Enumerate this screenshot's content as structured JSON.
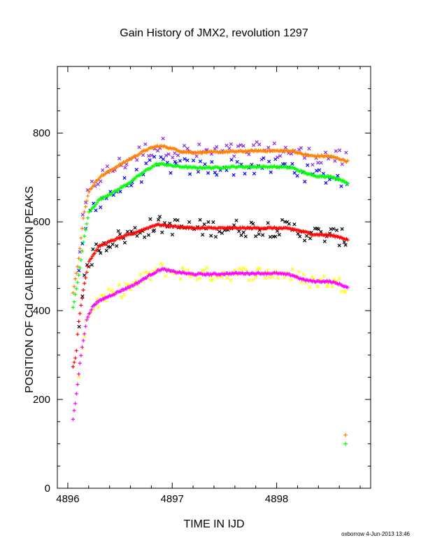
{
  "chart_data": {
    "type": "scatter",
    "title": "Gain History of JMX2, revolution 1297",
    "xlabel": "TIME IN IJD",
    "ylabel": "POSITION OF Cd CALIBRATION PEAKS",
    "xlim": [
      4895.9,
      4898.9
    ],
    "ylim": [
      0,
      950
    ],
    "x_ticks": [
      4896,
      4897,
      4898
    ],
    "y_ticks": [
      0,
      200,
      400,
      600,
      800
    ],
    "grid": false,
    "credit": "oxborrow  4-Jun-2013 13:46",
    "series": [
      {
        "color": "#ff7f00",
        "marker": "plus",
        "curve": [
          [
            4896.05,
            440
          ],
          [
            4896.1,
            510
          ],
          [
            4896.15,
            610
          ],
          [
            4896.2,
            668
          ],
          [
            4896.3,
            700
          ],
          [
            4896.45,
            722
          ],
          [
            4896.6,
            742
          ],
          [
            4896.75,
            762
          ],
          [
            4896.85,
            770
          ],
          [
            4896.92,
            770
          ],
          [
            4897.0,
            765
          ],
          [
            4897.1,
            758
          ],
          [
            4897.2,
            756
          ],
          [
            4897.4,
            757
          ],
          [
            4897.6,
            758
          ],
          [
            4897.8,
            760
          ],
          [
            4898.0,
            760
          ],
          [
            4898.15,
            760
          ],
          [
            4898.25,
            752
          ],
          [
            4898.35,
            748
          ],
          [
            4898.5,
            748
          ],
          [
            4898.6,
            742
          ],
          [
            4898.68,
            736
          ]
        ],
        "outliers": [
          [
            4898.66,
            120
          ]
        ]
      },
      {
        "color": "#00ff00",
        "marker": "plus",
        "curve": [
          [
            4896.05,
            408
          ],
          [
            4896.1,
            470
          ],
          [
            4896.15,
            555
          ],
          [
            4896.2,
            620
          ],
          [
            4896.3,
            650
          ],
          [
            4896.45,
            668
          ],
          [
            4896.6,
            690
          ],
          [
            4896.75,
            716
          ],
          [
            4896.85,
            730
          ],
          [
            4896.92,
            730
          ],
          [
            4897.0,
            726
          ],
          [
            4897.2,
            722
          ],
          [
            4897.4,
            722
          ],
          [
            4897.6,
            724
          ],
          [
            4897.8,
            724
          ],
          [
            4898.0,
            724
          ],
          [
            4898.15,
            722
          ],
          [
            4898.25,
            712
          ],
          [
            4898.35,
            704
          ],
          [
            4898.5,
            702
          ],
          [
            4898.6,
            696
          ],
          [
            4898.68,
            688
          ]
        ],
        "outliers": [
          [
            4898.66,
            100
          ]
        ]
      },
      {
        "color": "#ff0000",
        "marker": "plus",
        "curve": [
          [
            4896.05,
            272
          ],
          [
            4896.08,
            300
          ],
          [
            4896.1,
            368
          ],
          [
            4896.15,
            450
          ],
          [
            4896.2,
            510
          ],
          [
            4896.3,
            545
          ],
          [
            4896.45,
            560
          ],
          [
            4896.6,
            572
          ],
          [
            4896.75,
            585
          ],
          [
            4896.85,
            594
          ],
          [
            4896.92,
            592
          ],
          [
            4897.0,
            590
          ],
          [
            4897.2,
            586
          ],
          [
            4897.4,
            586
          ],
          [
            4897.6,
            586
          ],
          [
            4897.8,
            586
          ],
          [
            4898.0,
            586
          ],
          [
            4898.15,
            584
          ],
          [
            4898.25,
            578
          ],
          [
            4898.35,
            572
          ],
          [
            4898.5,
            570
          ],
          [
            4898.6,
            566
          ],
          [
            4898.68,
            560
          ]
        ],
        "outliers": []
      },
      {
        "color": "#ff00ff",
        "marker": "plus",
        "curve": [
          [
            4896.05,
            155
          ],
          [
            4896.08,
            205
          ],
          [
            4896.12,
            290
          ],
          [
            4896.18,
            380
          ],
          [
            4896.25,
            414
          ],
          [
            4896.35,
            428
          ],
          [
            4896.5,
            444
          ],
          [
            4896.65,
            460
          ],
          [
            4896.8,
            482
          ],
          [
            4896.9,
            494
          ],
          [
            4897.0,
            488
          ],
          [
            4897.2,
            482
          ],
          [
            4897.4,
            482
          ],
          [
            4897.6,
            484
          ],
          [
            4897.8,
            484
          ],
          [
            4898.0,
            484
          ],
          [
            4898.15,
            480
          ],
          [
            4898.25,
            470
          ],
          [
            4898.35,
            466
          ],
          [
            4898.5,
            466
          ],
          [
            4898.6,
            460
          ],
          [
            4898.68,
            452
          ]
        ],
        "outliers": []
      },
      {
        "color": "#8a2be2",
        "marker": "x",
        "scatter_of": 0,
        "spread": 20,
        "points": 90
      },
      {
        "color": "#0000ff",
        "marker": "x",
        "scatter_of": 1,
        "spread": 20,
        "points": 80
      },
      {
        "color": "#000000",
        "marker": "x",
        "scatter_of": 2,
        "spread": 20,
        "points": 110
      },
      {
        "color": "#ffff00",
        "marker": "x",
        "scatter_of": 3,
        "spread": 16,
        "points": 110
      }
    ]
  }
}
